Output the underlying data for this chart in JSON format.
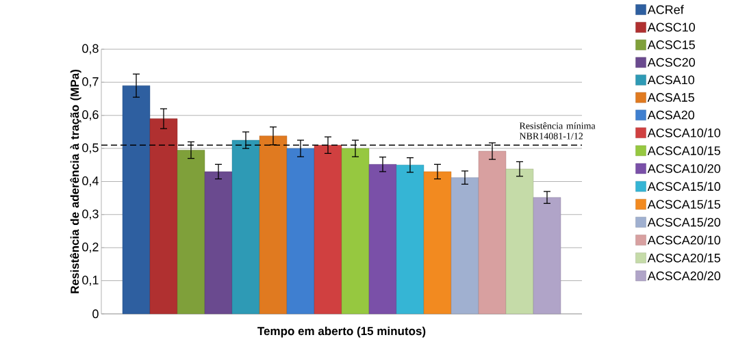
{
  "chart_data": {
    "type": "bar",
    "xlabel": "Tempo em aberto (15 minutos)",
    "ylabel": "Resistência de aderência à tração (MPa)",
    "categories": [
      null
    ],
    "series": [
      {
        "name": "ACRef",
        "color": "#2e5fa0",
        "values": [
          0.69
        ],
        "errors": [
          0.035
        ]
      },
      {
        "name": "ACSC10",
        "color": "#b03030",
        "values": [
          0.59
        ],
        "errors": [
          0.03
        ]
      },
      {
        "name": "ACSC15",
        "color": "#7fa03a",
        "values": [
          0.495
        ],
        "errors": [
          0.025
        ]
      },
      {
        "name": "ACSC20",
        "color": "#6a4a8f",
        "values": [
          0.43
        ],
        "errors": [
          0.022
        ]
      },
      {
        "name": "ACSA10",
        "color": "#2e9ab5",
        "values": [
          0.525
        ],
        "errors": [
          0.025
        ]
      },
      {
        "name": "ACSA15",
        "color": "#e07a20",
        "values": [
          0.538
        ],
        "errors": [
          0.027
        ]
      },
      {
        "name": "ACSA20",
        "color": "#3f7fd0",
        "values": [
          0.5
        ],
        "errors": [
          0.025
        ]
      },
      {
        "name": "ACSCA10/10",
        "color": "#d04040",
        "values": [
          0.51
        ],
        "errors": [
          0.025
        ]
      },
      {
        "name": "ACSCA10/15",
        "color": "#96c840",
        "values": [
          0.5
        ],
        "errors": [
          0.025
        ]
      },
      {
        "name": "ACSCA10/20",
        "color": "#7a50a8",
        "values": [
          0.452
        ],
        "errors": [
          0.022
        ]
      },
      {
        "name": "ACSCA15/10",
        "color": "#35b5d5",
        "values": [
          0.45
        ],
        "errors": [
          0.022
        ]
      },
      {
        "name": "ACSCA15/15",
        "color": "#f28a20",
        "values": [
          0.43
        ],
        "errors": [
          0.022
        ]
      },
      {
        "name": "ACSCA15/20",
        "color": "#a0b0d0",
        "values": [
          0.412
        ],
        "errors": [
          0.02
        ]
      },
      {
        "name": "ACSCA20/10",
        "color": "#d8a0a0",
        "values": [
          0.492
        ],
        "errors": [
          0.025
        ]
      },
      {
        "name": "ACSCA20/15",
        "color": "#c5dba8",
        "values": [
          0.438
        ],
        "errors": [
          0.022
        ]
      },
      {
        "name": "ACSCA20/20",
        "color": "#b0a4c8",
        "values": [
          0.352
        ],
        "errors": [
          0.018
        ]
      }
    ],
    "ylim": [
      0,
      0.8
    ],
    "yticks": [
      0,
      {
        "value": 0.1,
        "label": "0,1"
      },
      {
        "value": 0.2,
        "label": "0,2"
      },
      {
        "value": 0.3,
        "label": "0,3"
      },
      {
        "value": 0.4,
        "label": "0,4"
      },
      {
        "value": 0.5,
        "label": "0,5"
      },
      {
        "value": 0.6,
        "label": "0,6"
      },
      {
        "value": 0.7,
        "label": "0,7"
      },
      {
        "value": 0.8,
        "label": "0,8"
      }
    ],
    "grid": "y",
    "legend": "right",
    "ref_lines": [
      {
        "axis": "y",
        "value": 0.51,
        "label": "Resistência mínima NBR14081-1/12",
        "line_style": "dashed",
        "color": "#000000"
      }
    ]
  }
}
